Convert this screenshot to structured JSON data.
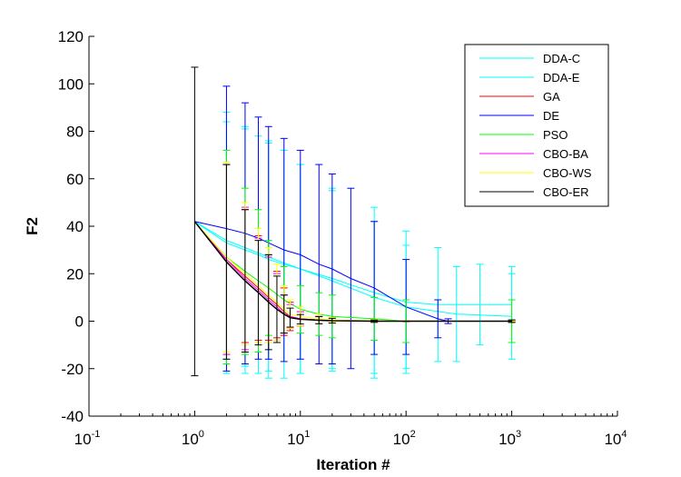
{
  "chart_data": {
    "type": "line",
    "title": "",
    "xlabel": "Iteration #",
    "ylabel": "F2",
    "xscale": "log",
    "xlim": [
      0.1,
      10000
    ],
    "ylim": [
      -40,
      120
    ],
    "x_ticks": [
      {
        "base": "10",
        "exp": "-1"
      },
      {
        "base": "10",
        "exp": "0"
      },
      {
        "base": "10",
        "exp": "1"
      },
      {
        "base": "10",
        "exp": "2"
      },
      {
        "base": "10",
        "exp": "3"
      },
      {
        "base": "10",
        "exp": "4"
      }
    ],
    "y_ticks": [
      "-40",
      "-20",
      "0",
      "20",
      "40",
      "60",
      "80",
      "100",
      "120"
    ],
    "grid": false,
    "legend_position": "top-right",
    "error_bars": true,
    "series": [
      {
        "name": "DDA-C",
        "color": "#00ffff",
        "x": [
          1,
          2,
          3,
          4,
          5,
          7,
          10,
          20,
          50,
          100,
          200,
          500,
          1000
        ],
        "y": [
          42,
          33,
          30,
          28,
          26,
          24,
          22,
          18,
          12,
          8,
          7,
          7,
          7
        ],
        "err": [
          0,
          55,
          52,
          50,
          50,
          48,
          44,
          38,
          36,
          30,
          24,
          17,
          16
        ]
      },
      {
        "name": "DDA-E",
        "color": "#00ffff",
        "x": [
          1,
          2,
          3,
          5,
          10,
          20,
          50,
          100,
          300,
          1000
        ],
        "y": [
          42,
          34,
          31,
          27,
          22,
          17,
          10,
          6,
          3,
          2
        ],
        "err": [
          0,
          50,
          50,
          48,
          44,
          38,
          32,
          26,
          20,
          18
        ]
      },
      {
        "name": "GA",
        "color": "#ff0000",
        "x": [
          1,
          2,
          3,
          4,
          5,
          6,
          7,
          8,
          10,
          15,
          20,
          50,
          100,
          1000
        ],
        "y": [
          42,
          26,
          19,
          14,
          10,
          7,
          4,
          2,
          1,
          0.5,
          0.3,
          0.1,
          0,
          0
        ],
        "err": [
          0,
          40,
          28,
          22,
          18,
          14,
          10,
          6,
          3,
          1.5,
          1,
          0.5,
          0.2,
          0.2
        ]
      },
      {
        "name": "DE",
        "color": "#0000ff",
        "x": [
          1,
          2,
          3,
          4,
          5,
          7,
          10,
          15,
          20,
          30,
          50,
          100,
          200,
          250,
          1000
        ],
        "y": [
          42,
          39,
          37,
          35,
          33,
          30,
          28,
          24,
          22,
          18,
          14,
          6,
          1,
          0,
          0
        ],
        "err": [
          0,
          60,
          55,
          51,
          49,
          47,
          44,
          42,
          40,
          38,
          28,
          20,
          8,
          1,
          0.5
        ]
      },
      {
        "name": "PSO",
        "color": "#00ff00",
        "x": [
          1,
          2,
          3,
          4,
          5,
          7,
          10,
          15,
          20,
          50,
          100,
          1000
        ],
        "y": [
          42,
          27,
          21,
          17,
          14,
          9,
          5,
          3,
          2,
          1,
          0,
          0
        ],
        "err": [
          0,
          45,
          35,
          30,
          20,
          14,
          10,
          9,
          9,
          9,
          9,
          9
        ]
      },
      {
        "name": "CBO-BA",
        "color": "#ff00ff",
        "x": [
          1,
          2,
          3,
          4,
          5,
          6,
          7,
          8,
          10,
          15,
          20,
          50,
          1000
        ],
        "y": [
          42,
          26,
          18,
          13,
          9,
          6,
          3,
          2,
          1,
          0.5,
          0.3,
          0,
          0
        ],
        "err": [
          0,
          40,
          30,
          22,
          18,
          14,
          8,
          5,
          3,
          1.5,
          1,
          0.3,
          0.2
        ]
      },
      {
        "name": "CBO-WS",
        "color": "#ffff00",
        "x": [
          1,
          2,
          3,
          4,
          5,
          6,
          7,
          8,
          10,
          15,
          20,
          50,
          1000
        ],
        "y": [
          42,
          27,
          20,
          15,
          11,
          8,
          5,
          3,
          2,
          1,
          0.5,
          0.2,
          0
        ],
        "err": [
          0,
          40,
          30,
          24,
          20,
          16,
          10,
          6,
          4,
          2,
          1,
          0.5,
          0.2
        ]
      },
      {
        "name": "CBO-ER",
        "color": "#000000",
        "x": [
          1,
          2,
          3,
          4,
          5,
          6,
          7,
          8,
          10,
          15,
          20,
          50,
          1000
        ],
        "y": [
          42,
          25,
          17,
          12,
          8,
          5,
          3,
          1.5,
          0.8,
          0.4,
          0.2,
          0,
          0
        ],
        "err": [
          65,
          41,
          30,
          22,
          20,
          14,
          8,
          4,
          2,
          1.5,
          1,
          0.5,
          0.5
        ]
      }
    ]
  }
}
